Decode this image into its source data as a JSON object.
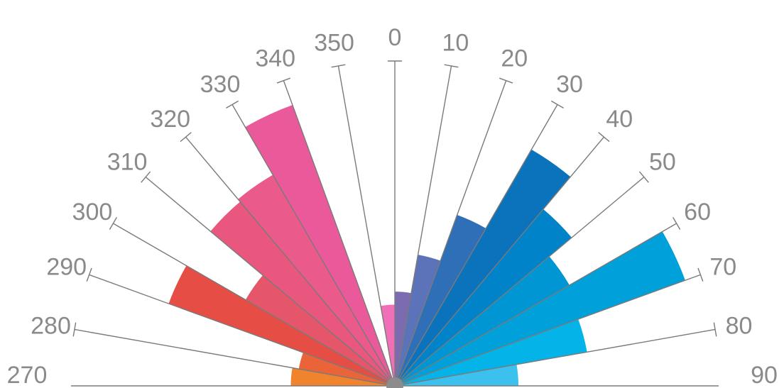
{
  "chart_data": {
    "type": "rose",
    "title": "",
    "direction_labels": [
      "270",
      "280",
      "290",
      "300",
      "310",
      "320",
      "330",
      "340",
      "350",
      "0",
      "10",
      "20",
      "30",
      "40",
      "50",
      "60",
      "70",
      "80",
      "90"
    ],
    "sectors": [
      {
        "start": 270,
        "end": 280,
        "value": 0.32,
        "color": "#F0832E"
      },
      {
        "start": 280,
        "end": 290,
        "value": 0.3,
        "color": "#EB6339"
      },
      {
        "start": 290,
        "end": 300,
        "value": 0.74,
        "color": "#E64E45"
      },
      {
        "start": 300,
        "end": 310,
        "value": 0.53,
        "color": "#E6566A"
      },
      {
        "start": 310,
        "end": 320,
        "value": 0.74,
        "color": "#E9577F"
      },
      {
        "start": 320,
        "end": 330,
        "value": 0.75,
        "color": "#EA5A8B"
      },
      {
        "start": 330,
        "end": 340,
        "value": 0.92,
        "color": "#EA5A9A"
      },
      {
        "start": 340,
        "end": 350,
        "value": 0.0,
        "color": "#EE5FA8"
      },
      {
        "start": 350,
        "end": 360,
        "value": 0.25,
        "color": "#F070B8"
      },
      {
        "start": 0,
        "end": 10,
        "value": 0.29,
        "color": "#7D6BB1"
      },
      {
        "start": 10,
        "end": 20,
        "value": 0.41,
        "color": "#5C73BA"
      },
      {
        "start": 20,
        "end": 30,
        "value": 0.56,
        "color": "#2F6FB8"
      },
      {
        "start": 30,
        "end": 40,
        "value": 0.84,
        "color": "#0B73BC"
      },
      {
        "start": 40,
        "end": 50,
        "value": 0.71,
        "color": "#0083C9"
      },
      {
        "start": 50,
        "end": 60,
        "value": 0.62,
        "color": "#0096D4"
      },
      {
        "start": 60,
        "end": 70,
        "value": 0.95,
        "color": "#00A0DA"
      },
      {
        "start": 70,
        "end": 80,
        "value": 0.6,
        "color": "#04B4E8"
      },
      {
        "start": 80,
        "end": 90,
        "value": 0.38,
        "color": "#3CC0EE"
      }
    ],
    "range": [
      270,
      90
    ],
    "rlim": [
      0,
      1
    ],
    "grid": true,
    "legend": "none"
  }
}
